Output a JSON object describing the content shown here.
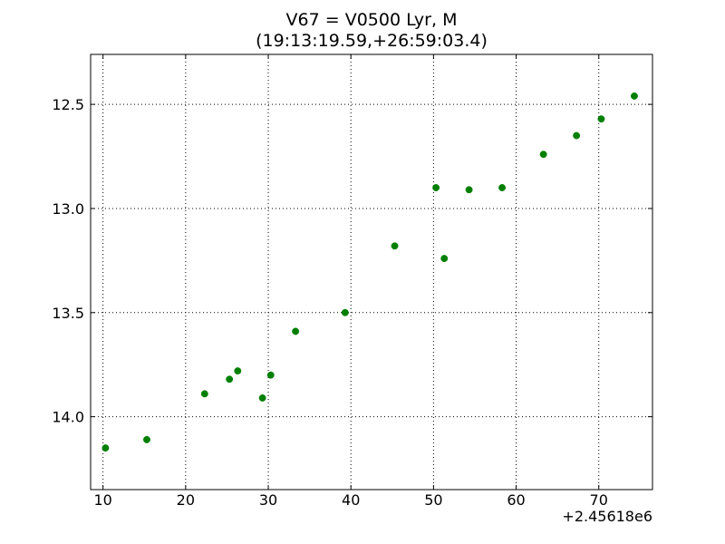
{
  "chart_data": {
    "type": "scatter",
    "title_line1": "V67 = V0500 Lyr, M",
    "title_line2": "(19:13:19.59,+26:59:03.4)",
    "xlabel": "",
    "ylabel": "",
    "x_offset_label": "+2.45618e6",
    "xlim": [
      8.5,
      76.5
    ],
    "ylim": [
      14.35,
      12.26
    ],
    "y_inverted": true,
    "grid": true,
    "x_ticks": [
      10,
      20,
      30,
      40,
      50,
      60,
      70
    ],
    "x_tick_labels": [
      "10",
      "20",
      "30",
      "40",
      "50",
      "60",
      "70"
    ],
    "y_ticks": [
      12.5,
      13.0,
      13.5,
      14.0
    ],
    "y_tick_labels": [
      "12.5",
      "13.0",
      "13.5",
      "14.0"
    ],
    "series": [
      {
        "color": "#007f00",
        "points": [
          {
            "x": 10.3,
            "y": 14.15
          },
          {
            "x": 15.3,
            "y": 14.11
          },
          {
            "x": 22.3,
            "y": 13.89
          },
          {
            "x": 25.3,
            "y": 13.82
          },
          {
            "x": 26.3,
            "y": 13.78
          },
          {
            "x": 29.3,
            "y": 13.91
          },
          {
            "x": 30.3,
            "y": 13.8
          },
          {
            "x": 33.3,
            "y": 13.59
          },
          {
            "x": 39.3,
            "y": 13.5
          },
          {
            "x": 45.3,
            "y": 13.18
          },
          {
            "x": 50.3,
            "y": 12.9
          },
          {
            "x": 51.3,
            "y": 13.24
          },
          {
            "x": 54.3,
            "y": 12.91
          },
          {
            "x": 58.3,
            "y": 12.9
          },
          {
            "x": 63.3,
            "y": 12.74
          },
          {
            "x": 67.3,
            "y": 12.65
          },
          {
            "x": 70.3,
            "y": 12.57
          },
          {
            "x": 74.3,
            "y": 12.46
          }
        ]
      }
    ]
  }
}
